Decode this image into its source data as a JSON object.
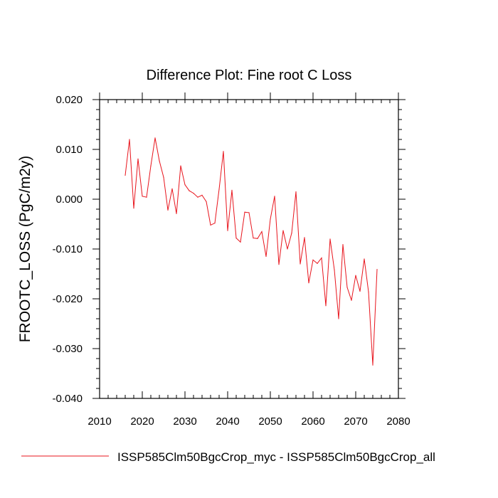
{
  "chart_data": {
    "type": "line",
    "title": "Difference Plot: Fine root C Loss",
    "xlabel": "",
    "ylabel": "FROOTC_LOSS  (PgC/m2y)",
    "xlim": [
      2010,
      2080
    ],
    "ylim": [
      -0.04,
      0.02
    ],
    "x_ticks": [
      2010,
      2020,
      2030,
      2040,
      2050,
      2060,
      2070,
      2080
    ],
    "x_tick_labels": [
      "2010",
      "2020",
      "2030",
      "2040",
      "2050",
      "2060",
      "2070",
      "2080"
    ],
    "y_ticks": [
      -0.04,
      -0.03,
      -0.02,
      -0.01,
      0.0,
      0.01,
      0.02
    ],
    "y_tick_labels": [
      "-0.040",
      "-0.030",
      "-0.020",
      "-0.010",
      "0.000",
      "0.010",
      "0.020"
    ],
    "grid": false,
    "legend_position": "bottom",
    "series": [
      {
        "name": "ISSP585Clm50BgcCrop_myc - ISSP585Clm50BgcCrop_all",
        "color": "#e8141c",
        "x": [
          2016,
          2017,
          2018,
          2019,
          2020,
          2021,
          2022,
          2023,
          2024,
          2025,
          2026,
          2027,
          2028,
          2029,
          2030,
          2031,
          2032,
          2033,
          2034,
          2035,
          2036,
          2037,
          2038,
          2039,
          2040,
          2041,
          2042,
          2043,
          2044,
          2045,
          2046,
          2047,
          2048,
          2049,
          2050,
          2051,
          2052,
          2053,
          2054,
          2055,
          2056,
          2057,
          2058,
          2059,
          2060,
          2061,
          2062,
          2063,
          2064,
          2065,
          2066,
          2067,
          2068,
          2069,
          2070,
          2071,
          2072,
          2073,
          2074,
          2075
        ],
        "y": [
          0.0048,
          0.012,
          -0.0018,
          0.0081,
          0.0006,
          0.0004,
          0.0067,
          0.0123,
          0.0077,
          0.0044,
          -0.0022,
          0.0021,
          -0.0029,
          0.0067,
          0.0029,
          0.0017,
          0.0012,
          0.0004,
          0.0008,
          -0.0005,
          -0.0052,
          -0.0048,
          0.002,
          0.0096,
          -0.0063,
          0.0018,
          -0.0078,
          -0.0086,
          -0.0026,
          -0.0027,
          -0.0078,
          -0.0079,
          -0.0065,
          -0.0115,
          -0.004,
          0.0006,
          -0.0131,
          -0.0063,
          -0.01,
          -0.0068,
          0.0015,
          -0.013,
          -0.0077,
          -0.0168,
          -0.0122,
          -0.0129,
          -0.0118,
          -0.0214,
          -0.008,
          -0.0142,
          -0.024,
          -0.0091,
          -0.0177,
          -0.0203,
          -0.0153,
          -0.0185,
          -0.012,
          -0.0186,
          -0.0333,
          -0.0141
        ]
      }
    ]
  }
}
